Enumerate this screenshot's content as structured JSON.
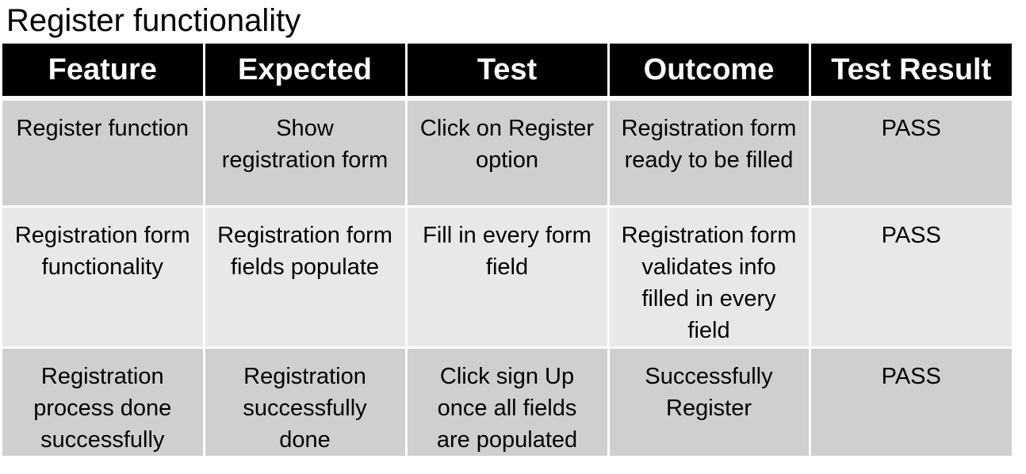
{
  "title": "Register functionality",
  "table": {
    "headers": [
      "Feature",
      "Expected",
      "Test",
      "Outcome",
      "Test Result"
    ],
    "rows": [
      {
        "feature": "Register function",
        "expected": "Show registration form",
        "test": "Click on Register option",
        "outcome": "Registration form ready to be filled",
        "result": "PASS"
      },
      {
        "feature": "Registration form functionality",
        "expected": "Registration form fields populate",
        "test": "Fill in every form field",
        "outcome": "Registration form validates info filled in every field",
        "result": "PASS"
      },
      {
        "feature": "Registration process done successfully",
        "expected": "Registration successfully done",
        "test": "Click sign Up once all fields are populated",
        "outcome": "Successfully Register",
        "result": "PASS"
      }
    ]
  }
}
